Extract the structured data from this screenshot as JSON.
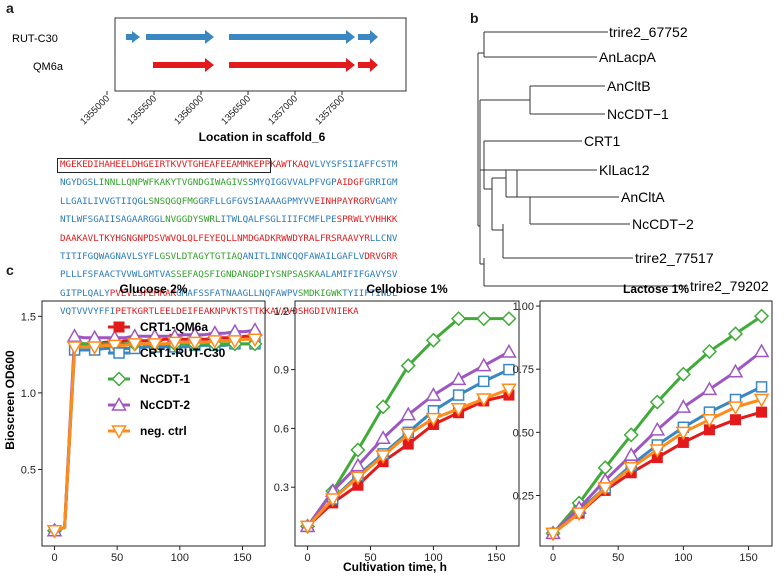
{
  "panel_labels": {
    "a": "a",
    "b": "b",
    "c": "c"
  },
  "panel_a": {
    "strain_labels": [
      "RUT-C30",
      "QM6a"
    ],
    "xlabel": "Location in scaffold_6",
    "ticks": [
      "1355000",
      "1355500",
      "1356000",
      "1356500",
      "1357000",
      "1357500"
    ],
    "colors": {
      "rut": "#3a87c2",
      "qm6a": "#e31a1c"
    }
  },
  "sequence": {
    "lines": [
      [
        [
          "MGEKEDIHAHEELDHGEIRTKVVTGHEAFEEAM",
          "red"
        ],
        [
          "MKEPPKAWTKAQ",
          "red"
        ],
        [
          "VLVYSFSIIAFFCSTM",
          "blue"
        ]
      ],
      [
        [
          "NGYDGSL",
          "blue"
        ],
        [
          "INNLLQNPWFKAKYTVGNDGIWAGIVS",
          "green"
        ],
        [
          "SMYQIGGVVALPFVGP",
          "blue"
        ],
        [
          "AIDGF",
          "red"
        ],
        [
          "GRRIGM",
          "blue"
        ]
      ],
      [
        [
          "LLGAILIVVGTIIQGL",
          "blue"
        ],
        [
          "SNSQGQFMG",
          "green"
        ],
        [
          "GRFLLGFGVSIAAAAGPMYVV",
          "blue"
        ],
        [
          "EINHPAYRGRV",
          "red"
        ],
        [
          "GAMY",
          "blue"
        ]
      ],
      [
        [
          "NTLWFSGAIISAGAARGGL",
          "blue"
        ],
        [
          "NVGGDYSWRL",
          "green"
        ],
        [
          "ITWLQALFSGLIIIFCMFLPE",
          "blue"
        ],
        [
          "SPRWLYVHHKK",
          "red"
        ]
      ],
      [
        [
          "DAAKAVLTKYHGNGNPDSVWVQLQLFEYEQLLNMDGADKRWWDYRALFRSRAAVYR",
          "red"
        ],
        [
          "LLCNV",
          "blue"
        ]
      ],
      [
        [
          "TITIFGQWAGNAVLSYFL",
          "blue"
        ],
        [
          "GSVLDTAGYTGTIAQ",
          "green"
        ],
        [
          "ANITLINNCQQFAWAILGAFLV",
          "blue"
        ],
        [
          "DRVGRR",
          "red"
        ]
      ],
      [
        [
          "PLLLFSFAACTVVWLGMTVA",
          "blue"
        ],
        [
          "SSEFAQSFIGNDANGDPIYSNPSASKA",
          "green"
        ],
        [
          "ALAMIFIFGAVYSV",
          "blue"
        ]
      ],
      [
        [
          "GITPLQALY",
          "blue"
        ],
        [
          "PVEVLSFEMRAK",
          "red"
        ],
        [
          "GMAFSSFATNAAGLLNQFAWPV",
          "blue"
        ],
        [
          "SMDKIGWK",
          "green"
        ],
        [
          "TYIIFTIWDL",
          "blue"
        ]
      ],
      [
        [
          "VQTVVVYFFI",
          "blue"
        ],
        [
          "PETKGRTLEELDEIFEAKNPVKTSTTKKAVAVDSHGDIVNIEKA",
          "red"
        ]
      ]
    ]
  },
  "tree": {
    "leaves": [
      "trire2_67752",
      "AnLacpA",
      "AnCltB",
      "NcCDT−1",
      "CRT1",
      "KlLac12",
      "AnCltA",
      "NcCDT−2",
      "trire2_77517",
      "trire2_79202"
    ]
  },
  "chart_data": [
    {
      "type": "line",
      "title": "Glucose 2%",
      "ylabel": "Bioscreen OD600",
      "x": [
        0,
        8,
        16,
        24,
        32,
        40,
        48,
        56,
        64,
        72,
        80,
        88,
        96,
        104,
        112,
        120,
        128,
        136,
        144,
        152,
        160
      ],
      "xticks": [
        0,
        50,
        100,
        150
      ],
      "yticks": [
        0.5,
        1.0,
        1.5
      ],
      "xlim": [
        -10,
        168
      ],
      "ylim": [
        0,
        1.6
      ],
      "series": [
        {
          "name": "CRT1-QM6a",
          "color": "#e31a1c",
          "marker": "square",
          "values": [
            0.1,
            0.12,
            1.32,
            1.32,
            1.32,
            1.33,
            1.33,
            1.34,
            1.34,
            1.34,
            1.34,
            1.35,
            1.35,
            1.35,
            1.35,
            1.35,
            1.36,
            1.36,
            1.36,
            1.37,
            1.37
          ]
        },
        {
          "name": "CRT1-RUT-C30",
          "color": "#3a87c2",
          "marker": "square-open",
          "values": [
            0.1,
            0.12,
            1.28,
            1.28,
            1.28,
            1.29,
            1.29,
            1.29,
            1.29,
            1.3,
            1.3,
            1.3,
            1.3,
            1.3,
            1.31,
            1.31,
            1.31,
            1.31,
            1.32,
            1.32,
            1.32
          ]
        },
        {
          "name": "NcCDT-1",
          "color": "#41ab3a",
          "marker": "diamond-open",
          "values": [
            0.1,
            0.12,
            1.33,
            1.32,
            1.32,
            1.32,
            1.32,
            1.32,
            1.32,
            1.32,
            1.32,
            1.32,
            1.32,
            1.32,
            1.32,
            1.32,
            1.32,
            1.32,
            1.32,
            1.32,
            1.32
          ]
        },
        {
          "name": "NcCDT-2",
          "color": "#9e57c0",
          "marker": "triangle-up-open",
          "values": [
            0.1,
            0.12,
            1.37,
            1.36,
            1.36,
            1.36,
            1.36,
            1.36,
            1.37,
            1.37,
            1.37,
            1.37,
            1.37,
            1.38,
            1.38,
            1.38,
            1.39,
            1.39,
            1.4,
            1.4,
            1.41
          ]
        },
        {
          "name": "neg. ctrl",
          "color": "#ff8c1a",
          "marker": "triangle-down-open",
          "values": [
            0.1,
            0.12,
            1.3,
            1.3,
            1.3,
            1.31,
            1.31,
            1.31,
            1.32,
            1.32,
            1.32,
            1.32,
            1.33,
            1.33,
            1.33,
            1.33,
            1.34,
            1.34,
            1.34,
            1.35,
            1.35
          ]
        }
      ]
    },
    {
      "type": "line",
      "title": "Cellobiose 1%",
      "xlabel": "Cultivation time, h",
      "x": [
        0,
        20,
        40,
        60,
        80,
        100,
        120,
        140,
        160
      ],
      "xticks": [
        0,
        50,
        100,
        150
      ],
      "yticks": [
        0.3,
        0.6,
        0.9,
        1.2
      ],
      "xlim": [
        -10,
        168
      ],
      "ylim": [
        0,
        1.25
      ],
      "series": [
        {
          "name": "CRT1-QM6a",
          "color": "#e31a1c",
          "marker": "square",
          "values": [
            0.1,
            0.22,
            0.31,
            0.43,
            0.52,
            0.62,
            0.68,
            0.74,
            0.77
          ]
        },
        {
          "name": "CRT1-RUT-C30",
          "color": "#3a87c2",
          "marker": "square-open",
          "values": [
            0.1,
            0.24,
            0.36,
            0.47,
            0.58,
            0.69,
            0.77,
            0.84,
            0.9
          ]
        },
        {
          "name": "NcCDT-1",
          "color": "#41ab3a",
          "marker": "diamond-open",
          "values": [
            0.1,
            0.28,
            0.49,
            0.71,
            0.92,
            1.05,
            1.16,
            1.16,
            1.16
          ]
        },
        {
          "name": "NcCDT-2",
          "color": "#9e57c0",
          "marker": "triangle-up-open",
          "values": [
            0.1,
            0.28,
            0.41,
            0.55,
            0.67,
            0.77,
            0.85,
            0.92,
            0.99
          ]
        },
        {
          "name": "neg. ctrl",
          "color": "#ff8c1a",
          "marker": "triangle-down-open",
          "values": [
            0.1,
            0.24,
            0.35,
            0.46,
            0.57,
            0.65,
            0.7,
            0.75,
            0.8
          ]
        }
      ]
    },
    {
      "type": "line",
      "title": "Lactose 1%",
      "x": [
        0,
        20,
        40,
        60,
        80,
        100,
        120,
        140,
        160
      ],
      "xticks": [
        0,
        50,
        100,
        150
      ],
      "yticks": [
        0.25,
        0.5,
        0.75,
        1.0
      ],
      "xlim": [
        -10,
        168
      ],
      "ylim": [
        0.05,
        1.02
      ],
      "series": [
        {
          "name": "CRT1-QM6a",
          "color": "#e31a1c",
          "marker": "square",
          "values": [
            0.1,
            0.18,
            0.27,
            0.34,
            0.4,
            0.46,
            0.51,
            0.55,
            0.58
          ]
        },
        {
          "name": "CRT1-RUT-C30",
          "color": "#3a87c2",
          "marker": "square-open",
          "values": [
            0.1,
            0.19,
            0.28,
            0.37,
            0.45,
            0.52,
            0.58,
            0.63,
            0.68
          ]
        },
        {
          "name": "NcCDT-1",
          "color": "#41ab3a",
          "marker": "diamond-open",
          "values": [
            0.1,
            0.22,
            0.36,
            0.49,
            0.62,
            0.73,
            0.82,
            0.89,
            0.96
          ]
        },
        {
          "name": "NcCDT-2",
          "color": "#9e57c0",
          "marker": "triangle-up-open",
          "values": [
            0.1,
            0.2,
            0.31,
            0.41,
            0.51,
            0.6,
            0.67,
            0.74,
            0.82
          ]
        },
        {
          "name": "neg. ctrl",
          "color": "#ff8c1a",
          "marker": "triangle-down-open",
          "values": [
            0.1,
            0.18,
            0.28,
            0.36,
            0.43,
            0.5,
            0.55,
            0.6,
            0.63
          ]
        }
      ]
    }
  ]
}
